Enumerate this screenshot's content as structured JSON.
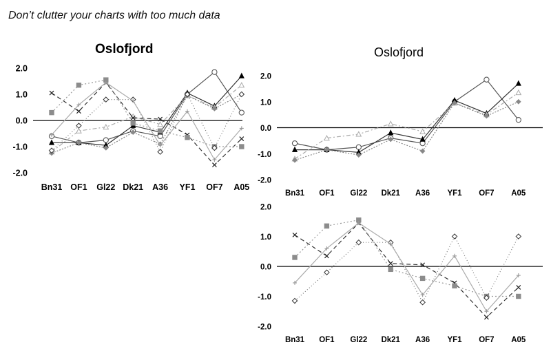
{
  "caption": "Don’t clutter your charts with too much data",
  "titles": {
    "left": "Oslofjord",
    "right": "Oslofjord"
  },
  "chart_data": [
    {
      "type": "line",
      "title": "Oslofjord",
      "categories": [
        "Bn31",
        "OF1",
        "Gl22",
        "Dk21",
        "A36",
        "YF1",
        "OF7",
        "A05"
      ],
      "ylim": [
        -2.0,
        2.0
      ],
      "yticks": [
        "2.0",
        "1.0",
        "0.0",
        "-1.0",
        "-2.0"
      ],
      "series": [
        {
          "values": [
            -0.6,
            -0.85,
            -0.75,
            -0.4,
            -0.6,
            1.0,
            1.85,
            0.3
          ],
          "color": "#555555",
          "marker": "circle-open",
          "dash": ""
        },
        {
          "values": [
            -0.85,
            -0.85,
            -0.95,
            -0.2,
            -0.45,
            1.05,
            0.55,
            1.7
          ],
          "color": "#333333",
          "marker": "triangle-filled",
          "dash": ""
        },
        {
          "values": [
            -1.2,
            -0.4,
            -0.25,
            0.15,
            -0.15,
            0.95,
            0.5,
            1.35
          ],
          "color": "#aaaaaa",
          "marker": "triangle-open",
          "dash": "6,3,2,3"
        },
        {
          "values": [
            -1.25,
            -0.85,
            -1.05,
            -0.45,
            -0.9,
            0.95,
            0.45,
            1.0
          ],
          "color": "#888888",
          "marker": "diamond-gray",
          "dash": "2,2"
        },
        {
          "values": [
            1.05,
            0.35,
            1.45,
            0.1,
            0.05,
            -0.55,
            -1.7,
            -0.7
          ],
          "color": "#333333",
          "marker": "x",
          "dash": "6,4"
        },
        {
          "values": [
            0.3,
            1.35,
            1.55,
            -0.1,
            -0.4,
            -0.65,
            -1.0,
            -1.0
          ],
          "color": "#999999",
          "marker": "square-gray",
          "dash": "2,3"
        },
        {
          "values": [
            -1.15,
            -0.2,
            0.8,
            0.8,
            -1.2,
            1.0,
            -1.05,
            1.0
          ],
          "color": "#777777",
          "marker": "diamond-open",
          "dash": "1,3"
        },
        {
          "values": [
            -0.55,
            0.6,
            1.45,
            0.75,
            -0.95,
            0.35,
            -1.5,
            -0.3
          ],
          "color": "#aaaaaa",
          "marker": "plus",
          "dash": ""
        }
      ]
    },
    {
      "type": "line",
      "title": "Oslofjord",
      "categories": [
        "Bn31",
        "OF1",
        "Gl22",
        "Dk21",
        "A36",
        "YF1",
        "OF7",
        "A05"
      ],
      "ylim": [
        -2.0,
        2.0
      ],
      "yticks": [
        "2.0",
        "1.0",
        "0.0",
        "-1.0",
        "-2.0"
      ],
      "series": [
        {
          "values": [
            -0.6,
            -0.85,
            -0.75,
            -0.4,
            -0.6,
            1.0,
            1.85,
            0.3
          ],
          "color": "#555555",
          "marker": "circle-open",
          "dash": ""
        },
        {
          "values": [
            -0.85,
            -0.85,
            -0.95,
            -0.2,
            -0.45,
            1.05,
            0.55,
            1.7
          ],
          "color": "#333333",
          "marker": "triangle-filled",
          "dash": ""
        },
        {
          "values": [
            -1.2,
            -0.4,
            -0.25,
            0.15,
            -0.15,
            0.95,
            0.5,
            1.35
          ],
          "color": "#aaaaaa",
          "marker": "triangle-open",
          "dash": "6,3,2,3"
        },
        {
          "values": [
            -1.25,
            -0.85,
            -1.05,
            -0.45,
            -0.9,
            0.95,
            0.45,
            1.0
          ],
          "color": "#888888",
          "marker": "diamond-gray",
          "dash": "2,2"
        }
      ]
    },
    {
      "type": "line",
      "title": "",
      "categories": [
        "Bn31",
        "OF1",
        "Gl22",
        "Dk21",
        "A36",
        "YF1",
        "OF7",
        "A05"
      ],
      "ylim": [
        -2.0,
        2.0
      ],
      "yticks": [
        "2.0",
        "1.0",
        "0.0",
        "-1.0",
        "-2.0"
      ],
      "series": [
        {
          "values": [
            1.05,
            0.35,
            1.45,
            0.1,
            0.05,
            -0.55,
            -1.7,
            -0.7
          ],
          "color": "#333333",
          "marker": "x",
          "dash": "6,4"
        },
        {
          "values": [
            0.3,
            1.35,
            1.55,
            -0.1,
            -0.4,
            -0.65,
            -1.0,
            -1.0
          ],
          "color": "#999999",
          "marker": "square-gray",
          "dash": "2,3"
        },
        {
          "values": [
            -1.15,
            -0.2,
            0.8,
            0.8,
            -1.2,
            1.0,
            -1.05,
            1.0
          ],
          "color": "#777777",
          "marker": "diamond-open",
          "dash": "1,3"
        },
        {
          "values": [
            -0.55,
            0.6,
            1.45,
            0.75,
            -0.95,
            0.35,
            -1.5,
            -0.3
          ],
          "color": "#aaaaaa",
          "marker": "plus",
          "dash": ""
        }
      ]
    }
  ]
}
